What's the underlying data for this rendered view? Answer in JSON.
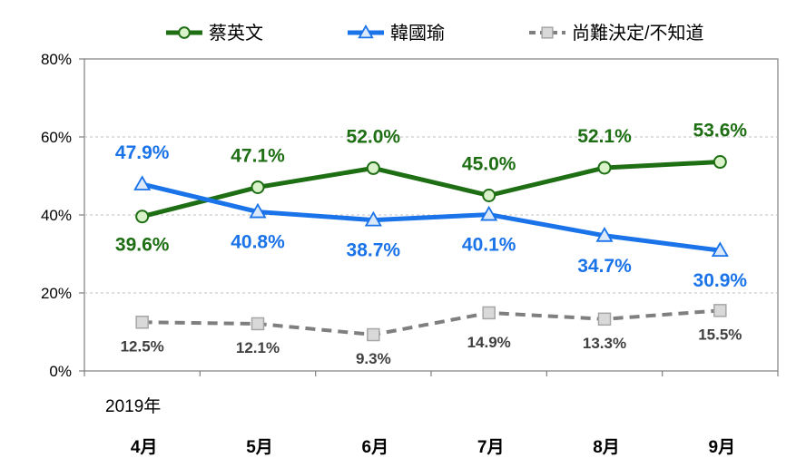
{
  "chart_data": {
    "type": "line",
    "categories": [
      "4月",
      "5月",
      "6月",
      "7月",
      "8月",
      "9月"
    ],
    "year_label": "2019年",
    "ylim": [
      0,
      80
    ],
    "yticks": [
      0,
      20,
      40,
      60,
      80
    ],
    "ytick_labels": [
      "0%",
      "20%",
      "40%",
      "60%",
      "80%"
    ],
    "grid": true,
    "legend_position": "top",
    "series": [
      {
        "name": "蔡英文",
        "color": "#1e6e14",
        "marker": "circle",
        "dash": false,
        "values": [
          39.6,
          47.1,
          52.0,
          45.0,
          52.1,
          53.6
        ],
        "labels": [
          "39.6%",
          "47.1%",
          "52.0%",
          "45.0%",
          "52.1%",
          "53.6%"
        ]
      },
      {
        "name": "韓國瑜",
        "color": "#1a73e8",
        "marker": "triangle",
        "dash": false,
        "values": [
          47.9,
          40.8,
          38.7,
          40.1,
          34.7,
          30.9
        ],
        "labels": [
          "47.9%",
          "40.8%",
          "38.7%",
          "40.1%",
          "34.7%",
          "30.9%"
        ]
      },
      {
        "name": "尚難決定/不知道",
        "color": "#7f7f7f",
        "marker": "square",
        "dash": true,
        "values": [
          12.5,
          12.1,
          9.3,
          14.9,
          13.3,
          15.5
        ],
        "labels": [
          "12.5%",
          "12.1%",
          "9.3%",
          "14.9%",
          "13.3%",
          "15.5%"
        ]
      }
    ]
  }
}
